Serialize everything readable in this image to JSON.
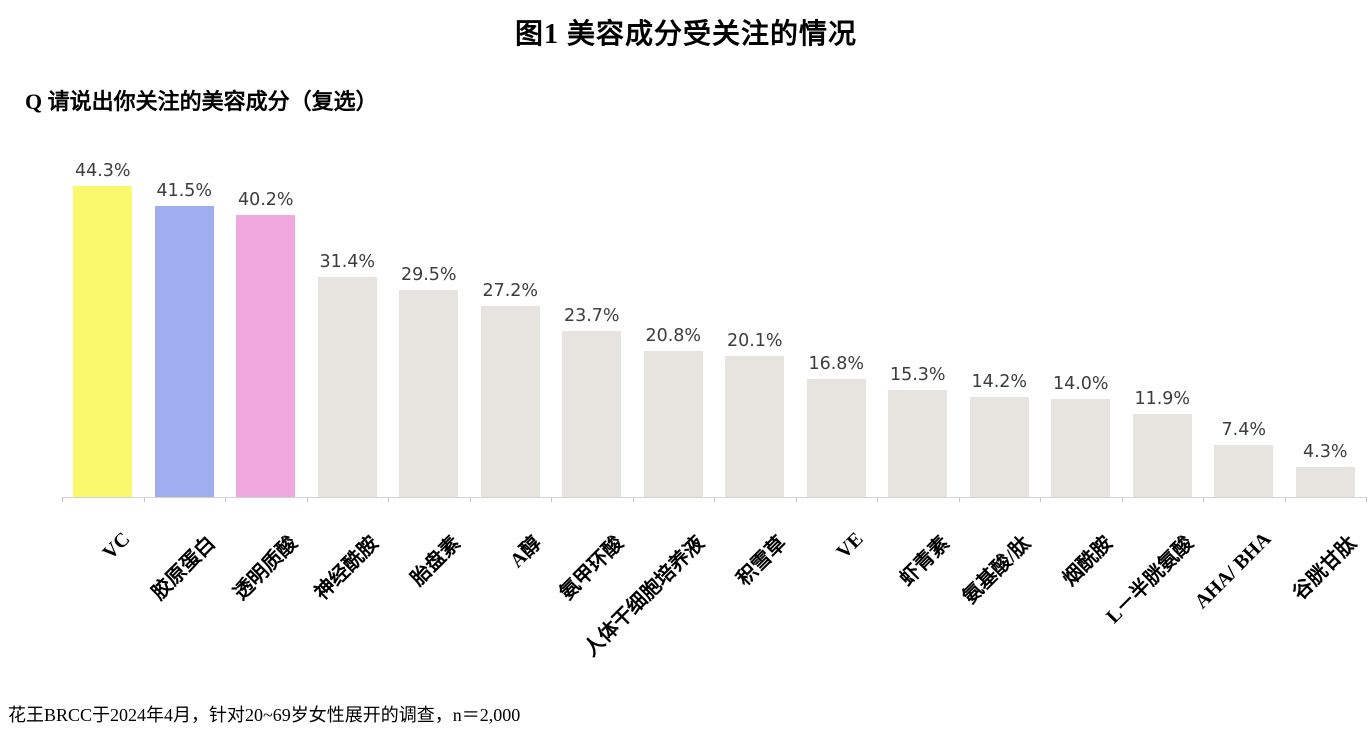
{
  "page": {
    "title": "图1 美容成分受关注的情况",
    "question": "Q 请说出你关注的美容成分（复选）",
    "footnote": "花王BRCC于2024年4月，针对20~69岁女性展开的调查，n＝2,000"
  },
  "chart_data": {
    "type": "bar",
    "title": "图1 美容成分受关注的情况",
    "subtitle": "Q 请说出你关注的美容成分（复选）",
    "categories": [
      "VC",
      "胶原蛋白",
      "透明质酸",
      "神经酰胺",
      "胎盘素",
      "A醇",
      "氨甲环酸",
      "人体干细胞培养液",
      "积雪草",
      "VE",
      "虾青素",
      "氨基酸/肽",
      "烟酰胺",
      "L－半胱氨酸",
      "AHA/ BHA",
      "谷胱甘肽"
    ],
    "values": [
      44.3,
      41.5,
      40.2,
      31.4,
      29.5,
      27.2,
      23.7,
      20.8,
      20.1,
      16.8,
      15.3,
      14.2,
      14.0,
      11.9,
      7.4,
      4.3
    ],
    "value_labels": [
      "44.3%",
      "41.5%",
      "40.2%",
      "31.4%",
      "29.5%",
      "27.2%",
      "23.7%",
      "20.8%",
      "20.1%",
      "16.8%",
      "15.3%",
      "14.2%",
      "14.0%",
      "11.9%",
      "7.4%",
      "4.3%"
    ],
    "highlight_colors": [
      "#faf96e",
      "#a0adf0",
      "#efa9de"
    ],
    "default_bar_color": "#e7e4e0",
    "value_label_color": "#3d3d3d",
    "axis_color": "#d6d3cf",
    "xlabel": "",
    "ylabel": "",
    "ylim": [
      0,
      50
    ],
    "grid": false,
    "legend": "none",
    "footnote": "花王BRCC于2024年4月，针对20~69岁女性展开的调查，n＝2,000"
  }
}
